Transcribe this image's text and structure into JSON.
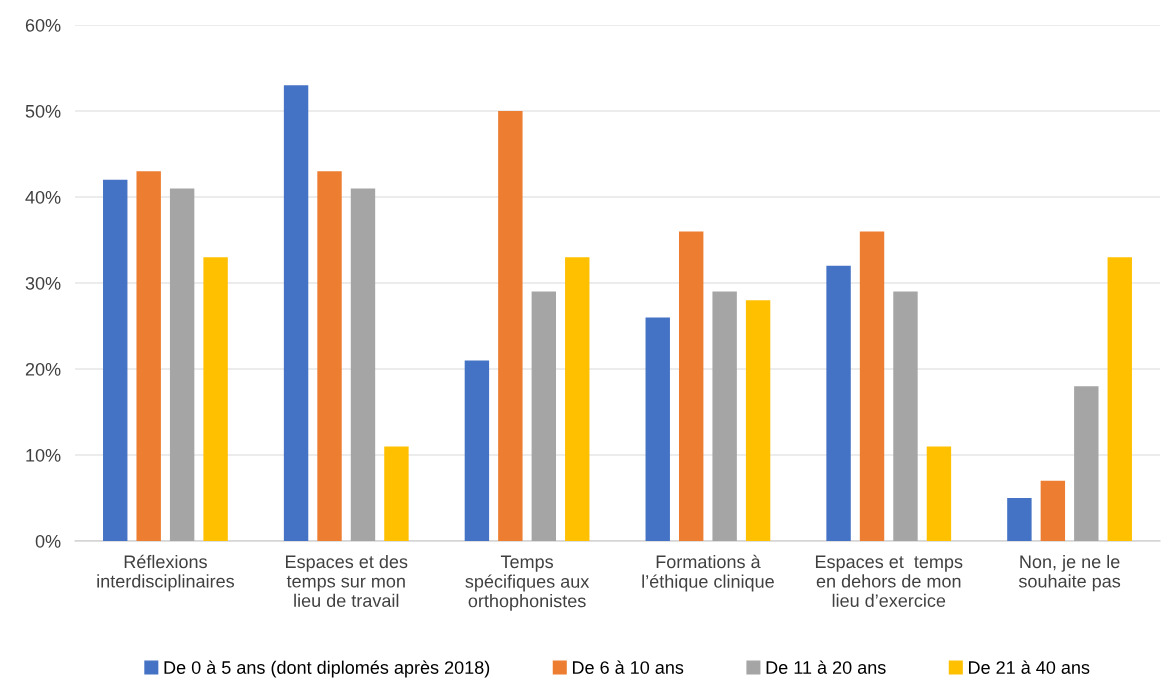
{
  "chart_data": {
    "type": "bar",
    "categories": [
      "Réflexions\ninterdisciplinaires",
      "Espaces et des\ntemps sur mon\nlieu de travail",
      "Temps\nspécifiques aux\northophonistes",
      "Formations à\nl’éthique clinique",
      "Espaces et  temps\nen dehors de mon\nlieu d’exercice",
      "Non, je ne le\nsouhaite pas"
    ],
    "series": [
      {
        "name": "De 0 à 5 ans (dont diplomés après 2018)",
        "color": "#4472c4",
        "values": [
          42,
          53,
          21,
          26,
          32,
          5
        ]
      },
      {
        "name": "De 6 à 10 ans",
        "color": "#ed7d31",
        "values": [
          43,
          43,
          50,
          36,
          36,
          7
        ]
      },
      {
        "name": "De 11 à 20 ans",
        "color": "#a5a5a5",
        "values": [
          41,
          41,
          29,
          29,
          29,
          18
        ]
      },
      {
        "name": "De 21 à 40 ans",
        "color": "#ffc000",
        "values": [
          33,
          11,
          33,
          28,
          11,
          33
        ]
      }
    ],
    "ylim": [
      0,
      60
    ],
    "yticks": [
      {
        "value": 0,
        "label": "0%"
      },
      {
        "value": 10,
        "label": "10%"
      },
      {
        "value": 20,
        "label": "20%"
      },
      {
        "value": 30,
        "label": "30%"
      },
      {
        "value": 40,
        "label": "40%"
      },
      {
        "value": 50,
        "label": "50%"
      },
      {
        "value": 60,
        "label": "60%"
      }
    ],
    "grid": "y",
    "legend": "bottom"
  }
}
